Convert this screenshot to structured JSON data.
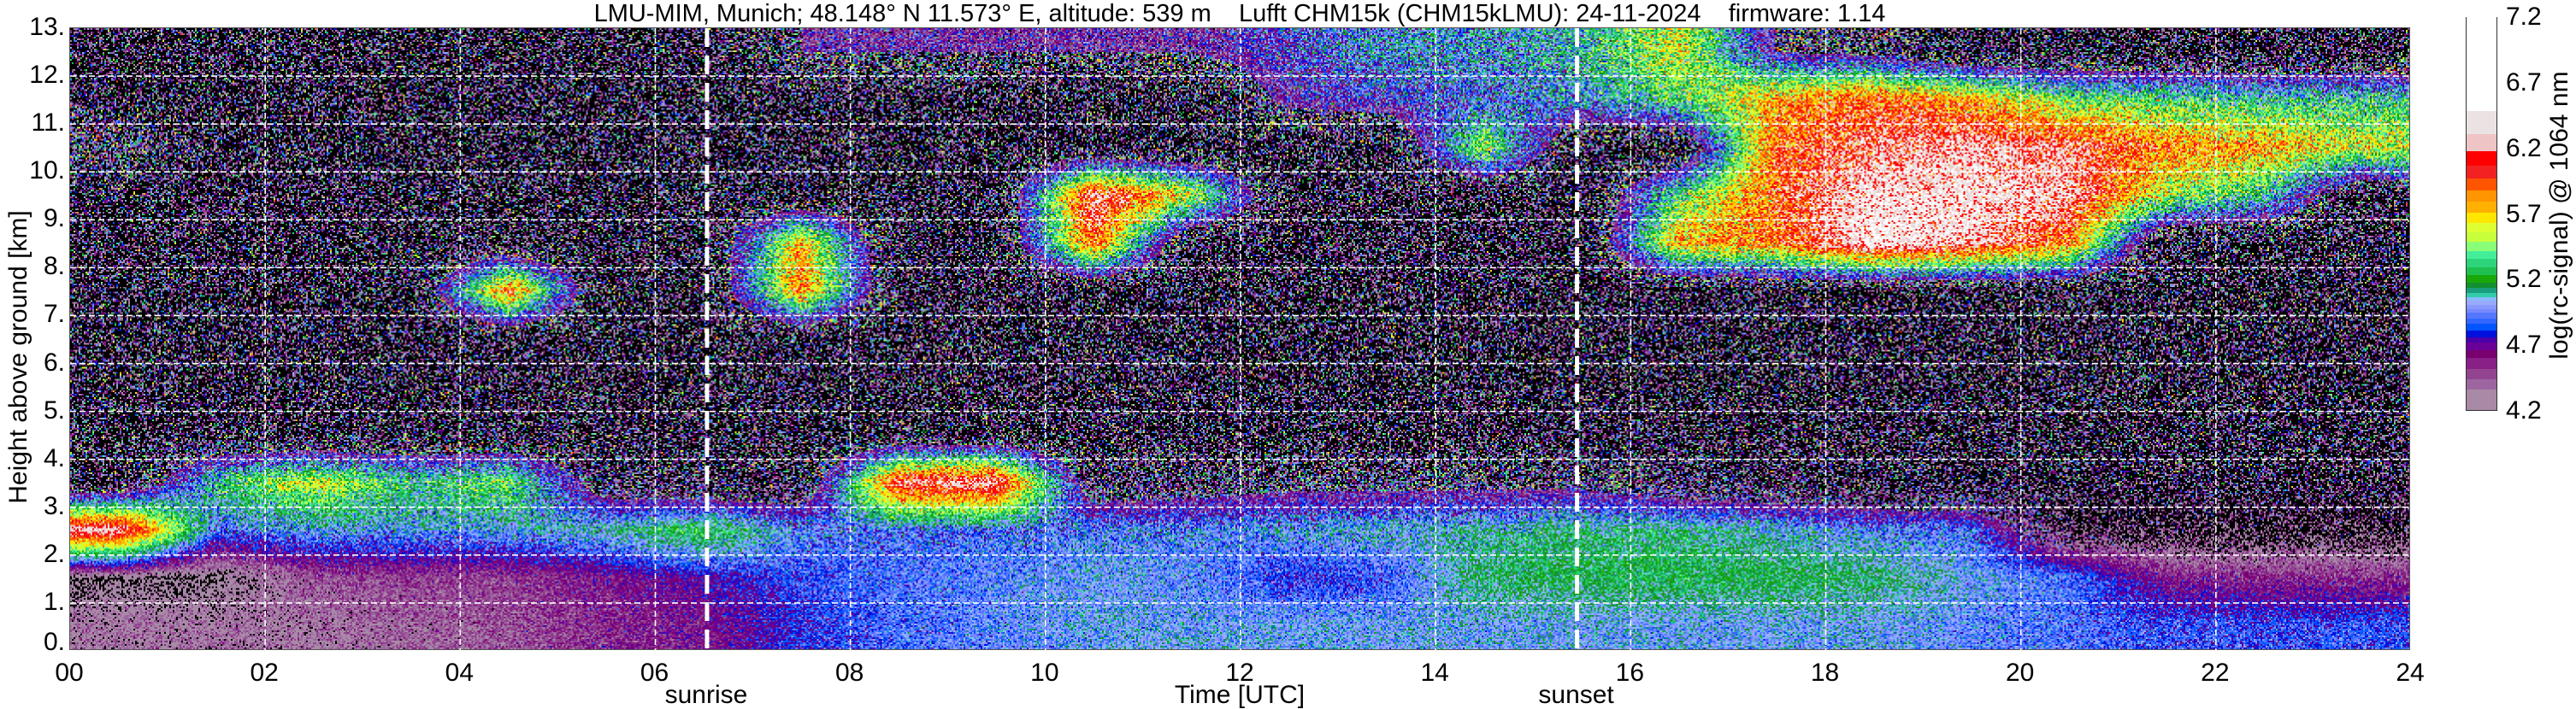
{
  "title": "LMU-MIM, Munich; 48.148° N 11.573° E, altitude: 539 m    Lufft CHM15k (CHM15kLMU): 24-11-2024    firmware: 1.14",
  "chart_data": {
    "type": "heatmap",
    "xlabel": "Time [UTC]",
    "ylabel": "Height above ground [km]",
    "xlim": [
      0,
      24
    ],
    "ylim": [
      0,
      13
    ],
    "xticks": [
      "00",
      "02",
      "04",
      "06",
      "08",
      "10",
      "12",
      "14",
      "16",
      "18",
      "20",
      "22",
      "24"
    ],
    "yticks": [
      "0.",
      "1.",
      "2.",
      "3.",
      "4.",
      "5.",
      "6.",
      "7.",
      "8.",
      "9.",
      "10.",
      "11.",
      "12.",
      "13."
    ],
    "grid": true,
    "markers": [
      {
        "label": "sunrise",
        "time_utc": 6.53
      },
      {
        "label": "sunset",
        "time_utc": 15.45
      }
    ],
    "colorbar": {
      "label": "log(rc-signal) @ 1064 nm",
      "range": [
        4.2,
        7.2
      ],
      "ticks": [
        "4.2",
        "4.7",
        "5.2",
        "5.7",
        "6.2",
        "6.7",
        "7.2"
      ],
      "below_color": "#000000",
      "levels": [
        {
          "from": 4.2,
          "color": "#a88aa6"
        },
        {
          "from": 4.356,
          "color": "#9d66a0"
        },
        {
          "from": 4.434,
          "color": "#934490"
        },
        {
          "from": 4.517,
          "color": "#882088"
        },
        {
          "from": 4.597,
          "color": "#7a0070"
        },
        {
          "from": 4.658,
          "color": "#6b0099"
        },
        {
          "from": 4.714,
          "color": "#4a00aa"
        },
        {
          "from": 4.757,
          "color": "#0010dd"
        },
        {
          "from": 4.807,
          "color": "#0055ff"
        },
        {
          "from": 4.857,
          "color": "#3366ff"
        },
        {
          "from": 4.901,
          "color": "#5577ff"
        },
        {
          "from": 4.942,
          "color": "#7788ff"
        },
        {
          "from": 4.972,
          "color": "#8899ff"
        },
        {
          "from": 5.005,
          "color": "#99aaff"
        },
        {
          "from": 5.035,
          "color": "#88bbff"
        },
        {
          "from": 5.066,
          "color": "#33ccaa"
        },
        {
          "from": 5.096,
          "color": "#1a9e7e"
        },
        {
          "from": 5.135,
          "color": "#128f2f"
        },
        {
          "from": 5.176,
          "color": "#19a80a"
        },
        {
          "from": 5.23,
          "color": "#1fbf50"
        },
        {
          "from": 5.289,
          "color": "#2dd47a"
        },
        {
          "from": 5.354,
          "color": "#44ee99"
        },
        {
          "from": 5.415,
          "color": "#88ff77"
        },
        {
          "from": 5.486,
          "color": "#c8ff3c"
        },
        {
          "from": 5.56,
          "color": "#ddff33"
        },
        {
          "from": 5.634,
          "color": "#ffe600"
        },
        {
          "from": 5.712,
          "color": "#ffb000"
        },
        {
          "from": 5.794,
          "color": "#ff9500"
        },
        {
          "from": 5.877,
          "color": "#ff5500"
        },
        {
          "from": 5.972,
          "color": "#f22222"
        },
        {
          "from": 6.072,
          "color": "#ff0000"
        },
        {
          "from": 6.18,
          "color": "#efc4c4"
        },
        {
          "from": 6.311,
          "color": "#ebe3e3"
        },
        {
          "from": 6.489,
          "color": "#ffffff"
        }
      ]
    },
    "grid_heights_km": [
      0.5,
      1.5,
      2.5,
      3.5,
      4.5,
      5.5,
      6.5,
      7.5,
      8.5,
      9.5,
      10.5,
      11.5,
      12.5
    ],
    "grid_times_utc": [
      0.5,
      1.5,
      2.5,
      3.5,
      4.5,
      5.5,
      6.5,
      7.5,
      8.5,
      9.5,
      10.5,
      11.5,
      12.5,
      13.5,
      14.5,
      15.5,
      16.5,
      17.5,
      18.5,
      19.5,
      20.5,
      21.5,
      22.5,
      23.5
    ],
    "values_estimated": [
      [
        4.35,
        4.35,
        4.35,
        4.4,
        4.45,
        4.55,
        4.6,
        4.8,
        4.9,
        4.95,
        5.0,
        5.0,
        5.0,
        5.0,
        5.0,
        5.0,
        5.0,
        5.0,
        5.0,
        4.95,
        4.9,
        4.85,
        4.85,
        4.85
      ],
      [
        4.2,
        4.2,
        4.45,
        4.5,
        4.5,
        4.6,
        4.7,
        4.85,
        4.9,
        4.95,
        5.0,
        4.95,
        4.8,
        4.85,
        5.15,
        5.2,
        5.2,
        5.2,
        5.15,
        5.0,
        4.9,
        4.6,
        4.55,
        4.55
      ],
      [
        6.3,
        4.9,
        5.0,
        5.0,
        5.0,
        5.1,
        5.3,
        4.95,
        4.9,
        4.9,
        4.95,
        4.95,
        5.0,
        5.05,
        5.1,
        5.15,
        5.15,
        5.05,
        4.95,
        4.9,
        4.2,
        4.1,
        4.1,
        4.1
      ],
      [
        4.1,
        5.2,
        5.6,
        5.2,
        5.4,
        4.3,
        4.2,
        4.2,
        6.2,
        6.3,
        4.3,
        4.4,
        4.5,
        4.5,
        4.5,
        4.5,
        4.3,
        4.2,
        4.1,
        4.1,
        4.1,
        4.1,
        4.1,
        4.1
      ],
      [
        4.1,
        4.1,
        4.1,
        4.1,
        4.1,
        4.1,
        4.1,
        4.1,
        4.1,
        4.1,
        4.1,
        4.1,
        4.1,
        4.1,
        4.1,
        4.1,
        4.1,
        4.1,
        4.1,
        4.1,
        4.1,
        4.1,
        4.1,
        4.1
      ],
      [
        4.1,
        4.1,
        4.1,
        4.1,
        4.1,
        4.1,
        4.1,
        4.1,
        4.1,
        4.1,
        4.1,
        4.1,
        4.1,
        4.1,
        4.1,
        4.1,
        4.1,
        4.1,
        4.1,
        4.1,
        4.1,
        4.1,
        4.1,
        4.1
      ],
      [
        4.1,
        4.1,
        4.1,
        4.1,
        4.1,
        4.1,
        4.1,
        4.1,
        4.1,
        4.1,
        4.1,
        4.1,
        4.1,
        4.1,
        4.1,
        4.1,
        4.1,
        4.1,
        4.1,
        4.1,
        4.1,
        4.1,
        4.1,
        4.1
      ],
      [
        4.1,
        4.1,
        4.1,
        4.1,
        6.0,
        4.1,
        4.1,
        5.9,
        4.1,
        4.1,
        4.1,
        4.1,
        4.1,
        4.1,
        4.1,
        4.1,
        4.1,
        4.1,
        4.1,
        4.1,
        4.1,
        4.1,
        4.1,
        4.1
      ],
      [
        4.1,
        4.1,
        4.1,
        4.1,
        4.1,
        4.1,
        4.1,
        5.8,
        4.1,
        4.1,
        6.0,
        4.1,
        4.1,
        4.1,
        4.1,
        4.1,
        5.8,
        5.9,
        6.5,
        6.3,
        5.9,
        4.1,
        4.1,
        4.1
      ],
      [
        4.1,
        4.1,
        4.1,
        4.1,
        4.1,
        4.1,
        4.1,
        4.1,
        4.1,
        4.1,
        6.3,
        5.6,
        4.1,
        4.1,
        4.1,
        4.1,
        5.3,
        6.0,
        6.4,
        6.4,
        6.3,
        5.5,
        5.2,
        4.1
      ],
      [
        4.6,
        4.1,
        4.1,
        4.1,
        4.1,
        4.1,
        4.1,
        4.1,
        4.1,
        4.1,
        4.1,
        4.1,
        4.1,
        4.1,
        5.5,
        4.1,
        4.1,
        6.0,
        6.2,
        6.3,
        6.2,
        5.9,
        5.8,
        5.6
      ],
      [
        4.1,
        4.1,
        4.1,
        4.1,
        4.1,
        4.1,
        4.1,
        4.1,
        4.1,
        4.1,
        4.1,
        4.1,
        4.7,
        4.8,
        4.9,
        5.0,
        5.3,
        5.8,
        6.0,
        5.8,
        5.4,
        5.3,
        5.2,
        5.2
      ],
      [
        4.1,
        4.1,
        4.1,
        4.1,
        4.1,
        4.1,
        4.1,
        4.6,
        4.6,
        4.6,
        4.6,
        4.6,
        4.8,
        5.0,
        5.0,
        5.1,
        5.6,
        4.6,
        4.5,
        4.1,
        4.1,
        4.1,
        4.1,
        4.1
      ]
    ]
  }
}
